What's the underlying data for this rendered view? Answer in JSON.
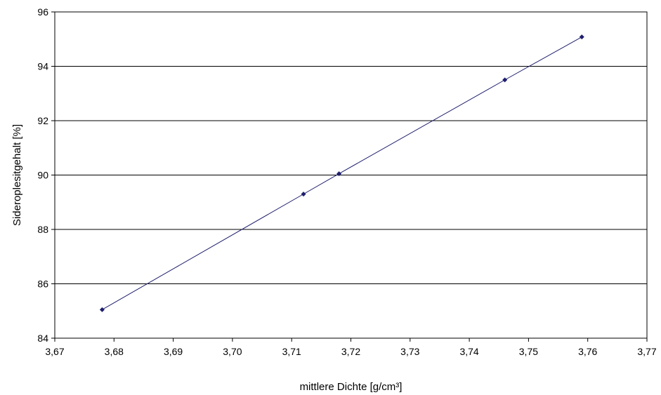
{
  "chart_data": {
    "type": "scatter",
    "title": "",
    "xlabel": "mittlere Dichte [g/cm³]",
    "ylabel": "Sideroplesitgehalt  [%]",
    "xlim": [
      3.67,
      3.77
    ],
    "ylim": [
      84,
      96
    ],
    "xticks": [
      "3,67",
      "3,68",
      "3,69",
      "3,70",
      "3,71",
      "3,72",
      "3,73",
      "3,74",
      "3,75",
      "3,76",
      "3,77"
    ],
    "yticks": [
      "84",
      "86",
      "88",
      "90",
      "92",
      "94",
      "96"
    ],
    "grid": "horizontal",
    "legend": "none",
    "series": [
      {
        "x": [
          3.678,
          3.712,
          3.718,
          3.746,
          3.759
        ],
        "y": [
          85.05,
          89.3,
          90.05,
          93.5,
          95.08
        ],
        "color": "#1f1f6e",
        "marker": "diamond",
        "trendline": "linear"
      }
    ]
  }
}
